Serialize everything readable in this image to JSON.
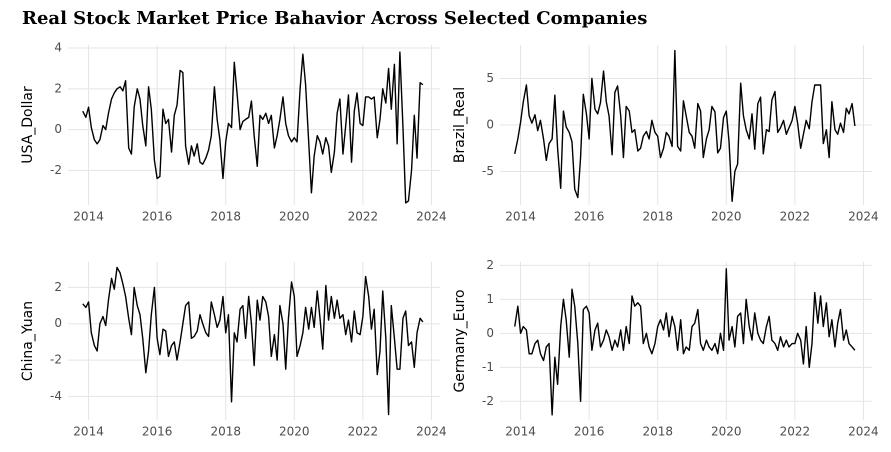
{
  "chart_data": {
    "type": "line",
    "title": "Real Stock Market Price Bahavior Across Selected Companies",
    "x": [
      2013.83,
      2013.92,
      2014.0,
      2014.08,
      2014.17,
      2014.25,
      2014.33,
      2014.42,
      2014.5,
      2014.58,
      2014.67,
      2014.75,
      2014.83,
      2014.92,
      2015.0,
      2015.08,
      2015.17,
      2015.25,
      2015.33,
      2015.42,
      2015.5,
      2015.58,
      2015.67,
      2015.75,
      2015.83,
      2015.92,
      2016.0,
      2016.08,
      2016.17,
      2016.25,
      2016.33,
      2016.42,
      2016.5,
      2016.58,
      2016.67,
      2016.75,
      2016.83,
      2016.92,
      2017.0,
      2017.08,
      2017.17,
      2017.25,
      2017.33,
      2017.42,
      2017.5,
      2017.58,
      2017.67,
      2017.75,
      2017.83,
      2017.92,
      2018.0,
      2018.08,
      2018.17,
      2018.25,
      2018.33,
      2018.42,
      2018.5,
      2018.58,
      2018.67,
      2018.75,
      2018.83,
      2018.92,
      2019.0,
      2019.08,
      2019.17,
      2019.25,
      2019.33,
      2019.42,
      2019.5,
      2019.58,
      2019.67,
      2019.75,
      2019.83,
      2019.92,
      2020.0,
      2020.08,
      2020.17,
      2020.25,
      2020.33,
      2020.42,
      2020.5,
      2020.58,
      2020.67,
      2020.75,
      2020.83,
      2020.92,
      2021.0,
      2021.08,
      2021.17,
      2021.25,
      2021.33,
      2021.42,
      2021.5,
      2021.58,
      2021.67,
      2021.75,
      2021.83,
      2021.92,
      2022.0,
      2022.08,
      2022.17,
      2022.25,
      2022.33,
      2022.42,
      2022.5,
      2022.58,
      2022.67,
      2022.75,
      2022.83,
      2022.92,
      2023.0,
      2023.08,
      2023.17,
      2023.25,
      2023.33,
      2023.42,
      2023.5,
      2023.58,
      2023.67,
      2023.75
    ],
    "xlim": [
      2013.4,
      2024.25
    ],
    "xticks": [
      2014,
      2016,
      2018,
      2020,
      2022,
      2024
    ],
    "grid": true,
    "series": [
      {
        "name": "USA_Dollar",
        "color": "#000000",
        "ylim": [
          -3.7,
          4.15
        ],
        "yticks": [
          -2,
          0,
          2,
          4
        ],
        "values": [
          0.9,
          0.6,
          1.1,
          0.1,
          -0.5,
          -0.7,
          -0.5,
          0.2,
          0.0,
          0.8,
          1.5,
          1.8,
          2.0,
          2.1,
          1.9,
          2.4,
          -0.9,
          -1.2,
          1.1,
          2.0,
          1.5,
          0.2,
          -0.8,
          2.1,
          1.0,
          -1.5,
          -2.4,
          -2.3,
          1.0,
          0.3,
          0.5,
          -1.1,
          0.7,
          1.2,
          2.9,
          2.8,
          -0.8,
          -1.7,
          -0.8,
          -1.3,
          -0.7,
          -1.6,
          -1.7,
          -1.4,
          -1.0,
          -0.3,
          2.1,
          0.5,
          -0.5,
          -2.4,
          -0.6,
          0.3,
          0.1,
          3.3,
          1.8,
          0.0,
          0.4,
          0.5,
          0.6,
          1.4,
          -0.3,
          -1.8,
          0.7,
          0.5,
          0.8,
          0.3,
          0.7,
          -0.9,
          -0.3,
          0.5,
          1.6,
          0.3,
          -0.3,
          -0.6,
          -0.4,
          -0.6,
          2.0,
          3.7,
          2.2,
          -0.6,
          -3.1,
          -1.3,
          -0.3,
          -0.6,
          -1.2,
          -0.4,
          -0.8,
          -2.1,
          -1.1,
          0.8,
          1.5,
          -1.2,
          0.2,
          1.7,
          -1.6,
          0.9,
          1.8,
          0.3,
          0.2,
          1.6,
          1.6,
          1.5,
          1.6,
          -0.4,
          0.5,
          2.0,
          1.3,
          3.0,
          1.0,
          3.2,
          -0.7,
          3.8,
          0.1,
          -3.6,
          -3.5,
          -2.0,
          0.7,
          -1.4,
          2.3,
          2.2
        ]
      },
      {
        "name": "Brazil_Real",
        "color": "#000000",
        "ylim": [
          -8.6,
          8.6
        ],
        "yticks": [
          -5,
          0,
          5
        ],
        "values": [
          -3.1,
          -1.5,
          0.3,
          2.5,
          4.3,
          1.0,
          0.2,
          1.1,
          -0.6,
          0.5,
          -1.5,
          -3.8,
          -2.0,
          -1.5,
          3.2,
          -2.5,
          -6.8,
          1.5,
          -0.2,
          -0.8,
          -1.8,
          -6.9,
          -7.8,
          -3.5,
          3.3,
          1.2,
          -1.5,
          5.0,
          1.7,
          1.2,
          2.4,
          5.8,
          2.5,
          1.0,
          -3.2,
          3.5,
          4.2,
          1.0,
          -3.5,
          2.0,
          1.5,
          -0.8,
          -0.5,
          -2.8,
          -2.5,
          -1.2,
          -0.7,
          -1.5,
          0.5,
          -0.8,
          -1.2,
          -3.5,
          -2.5,
          -0.8,
          -1.2,
          -2.3,
          8.0,
          -2.3,
          -2.8,
          2.6,
          1.0,
          -0.8,
          -1.2,
          -2.5,
          2.3,
          1.5,
          -3.5,
          -1.5,
          -0.5,
          2.0,
          1.4,
          -3.0,
          -2.5,
          0.8,
          1.5,
          -1.8,
          -8.2,
          -5.0,
          -4.2,
          4.5,
          1.0,
          -0.5,
          -1.5,
          1.2,
          -2.6,
          2.3,
          3.0,
          -3.1,
          -0.5,
          -0.7,
          2.7,
          3.6,
          -0.8,
          -0.3,
          0.5,
          -1.0,
          -0.3,
          0.5,
          2.0,
          0.2,
          -2.5,
          -1.0,
          0.5,
          -0.4,
          2.5,
          4.3,
          4.3,
          4.3,
          -2.0,
          -0.5,
          -3.5,
          2.5,
          -0.5,
          -1.0,
          0.2,
          -0.8,
          1.8,
          1.2,
          2.3,
          -0.1
        ]
      },
      {
        "name": "China_Yuan",
        "color": "#000000",
        "ylim": [
          -5.3,
          3.4
        ],
        "yticks": [
          -4,
          -2,
          0,
          2
        ],
        "values": [
          1.1,
          0.9,
          1.2,
          -0.5,
          -1.2,
          -1.5,
          0.0,
          0.4,
          -0.1,
          1.3,
          2.5,
          1.9,
          3.1,
          2.8,
          2.2,
          1.5,
          0.3,
          -0.6,
          2.0,
          1.0,
          0.5,
          -0.8,
          -2.7,
          -1.5,
          0.5,
          2.0,
          -0.8,
          -1.7,
          -0.3,
          -0.4,
          -1.8,
          -1.2,
          -1.0,
          -2.0,
          -1.0,
          0.0,
          1.0,
          1.2,
          -0.8,
          -0.7,
          -0.4,
          0.5,
          0.0,
          -0.5,
          -0.7,
          1.2,
          0.5,
          -0.2,
          0.2,
          1.5,
          -0.5,
          0.5,
          -4.3,
          -0.5,
          -1.0,
          0.8,
          1.0,
          -0.8,
          1.5,
          0.0,
          -2.3,
          1.3,
          0.2,
          1.5,
          1.2,
          0.4,
          -1.8,
          -0.6,
          -2.0,
          1.0,
          0.0,
          -2.5,
          0.3,
          2.3,
          1.5,
          -1.8,
          -1.2,
          -0.5,
          0.9,
          -0.3,
          0.9,
          -0.2,
          1.8,
          0.3,
          -1.4,
          2.1,
          0.2,
          1.5,
          0.3,
          1.3,
          0.3,
          0.5,
          -0.6,
          0.2,
          -1.0,
          0.7,
          -0.5,
          -0.6,
          0.4,
          2.6,
          1.5,
          -0.3,
          0.8,
          -2.8,
          -1.5,
          1.8,
          -0.8,
          -5.0,
          1.0,
          -0.8,
          -2.5,
          -2.5,
          0.3,
          0.7,
          -1.2,
          -1.0,
          -2.4,
          -0.5,
          0.3,
          0.1
        ]
      },
      {
        "name": "Germany_Euro",
        "color": "#000000",
        "ylim": [
          -2.55,
          2.1
        ],
        "yticks": [
          -2,
          -1,
          0,
          1,
          2
        ],
        "values": [
          0.2,
          0.8,
          0.0,
          0.2,
          0.1,
          -0.6,
          -0.6,
          -0.3,
          -0.2,
          -0.6,
          -0.8,
          -0.4,
          -0.3,
          -2.4,
          -0.7,
          -1.5,
          0.2,
          1.0,
          0.4,
          -0.7,
          1.3,
          0.8,
          -0.3,
          -2.0,
          0.7,
          0.8,
          0.6,
          -0.5,
          0.1,
          0.3,
          -0.4,
          -0.2,
          0.1,
          -0.1,
          -0.5,
          -0.2,
          -0.4,
          0.1,
          -0.5,
          0.2,
          -0.3,
          1.1,
          0.8,
          0.9,
          0.8,
          -0.3,
          0.0,
          -0.4,
          -0.6,
          -0.3,
          0.2,
          0.4,
          0.1,
          0.6,
          -0.1,
          0.5,
          0.2,
          -0.5,
          0.4,
          -0.6,
          -0.4,
          -0.5,
          0.2,
          0.3,
          0.7,
          -0.3,
          -0.5,
          -0.2,
          -0.4,
          -0.5,
          -0.3,
          -0.6,
          0.0,
          -0.5,
          1.9,
          -0.2,
          0.2,
          -0.4,
          0.5,
          0.6,
          -0.3,
          1.0,
          0.2,
          -0.2,
          0.6,
          0.0,
          -0.2,
          -0.3,
          0.2,
          0.5,
          -0.2,
          -0.3,
          -0.5,
          -0.1,
          -0.4,
          -0.2,
          -0.4,
          -0.3,
          -0.3,
          0.0,
          -0.2,
          -0.9,
          0.2,
          -1.0,
          -0.3,
          1.2,
          0.3,
          1.1,
          0.2,
          0.9,
          -0.1,
          0.4,
          -0.4,
          0.3,
          0.7,
          -0.2,
          0.1,
          -0.3,
          -0.4,
          -0.5
        ]
      }
    ]
  }
}
